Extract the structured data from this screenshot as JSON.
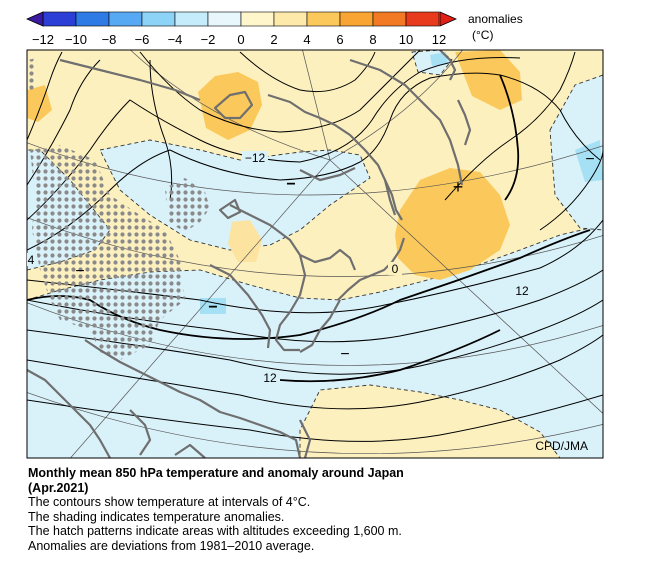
{
  "colorbar": {
    "ticks": [
      "−12",
      "−10",
      "−8",
      "−6",
      "−4",
      "−2",
      "0",
      "2",
      "4",
      "6",
      "8",
      "10",
      "12"
    ],
    "colors": [
      "#2b3fd6",
      "#2f7be6",
      "#56a9f2",
      "#8cd3f7",
      "#c4ecfa",
      "#e7f7fb",
      "#fff6cc",
      "#fde9a9",
      "#fbc95b",
      "#f8a533",
      "#f27a25",
      "#e83a1c"
    ],
    "units_line1": "anomalies",
    "units_line2": "(°C)"
  },
  "map": {
    "credit": "CPD/JMA",
    "contour_labels": {
      "minus12": "−12",
      "zero": "0",
      "twelve_east": "12",
      "twelve_south": "12",
      "four_west": "4"
    },
    "symbols": {
      "plus": "+",
      "minus": "−"
    },
    "colors": {
      "anomaly_positive": "#fde9a9",
      "anomaly_warm": "#fbc95b",
      "anomaly_negative": "#d8f1fa",
      "anomaly_cold": "#a7e0f5",
      "coastline": "#6f6f6f",
      "hatch": "#8a8a8a"
    }
  },
  "caption": {
    "title": "Monthly mean 850 hPa temperature and anomaly around Japan",
    "date": "(Apr.2021)",
    "line1": "The contours show temperature at intervals of 4°C.",
    "line2": "The shading indicates temperature anomalies.",
    "line3": "The hatch patterns indicate areas with altitudes exceeding 1,600 m.",
    "line4": "Anomalies are deviations from 1981–2010 average."
  }
}
